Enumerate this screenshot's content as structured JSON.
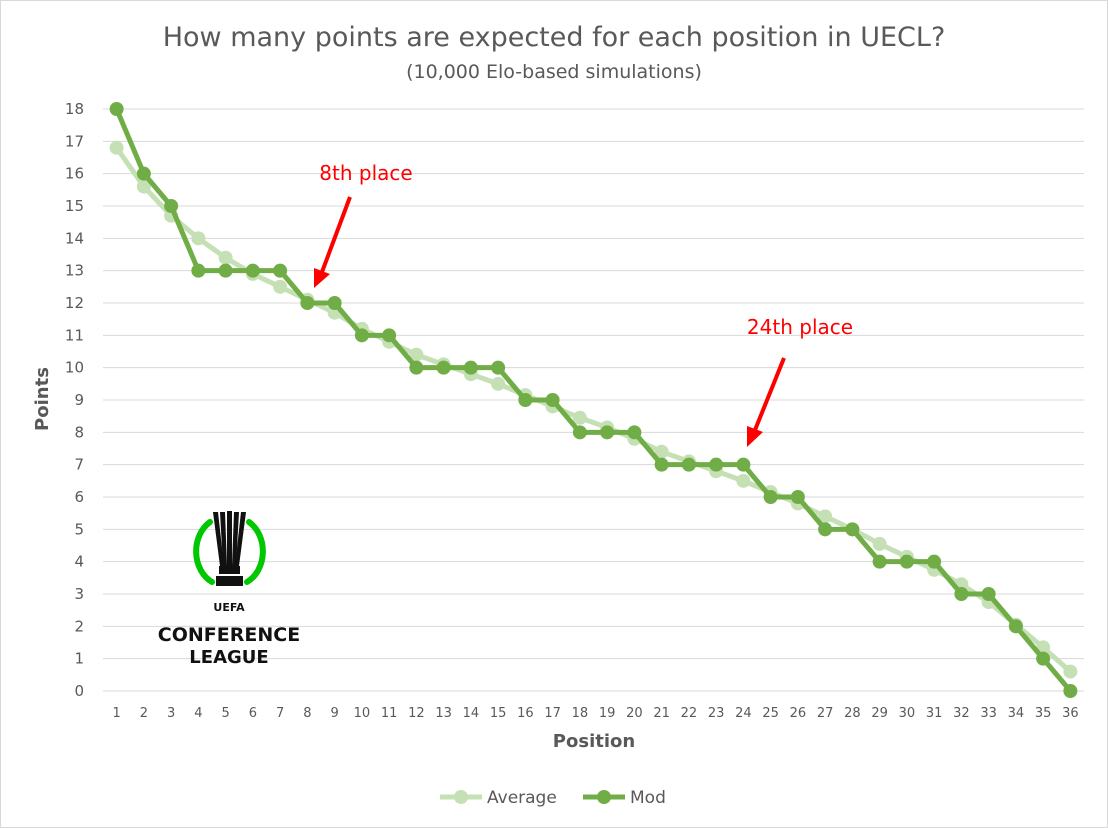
{
  "chart_data": {
    "type": "line",
    "title": "How many points are expected for each position in UECL?",
    "subtitle": "(10,000 Elo-based simulations)",
    "xlabel": "Position",
    "ylabel": "Points",
    "ylim": [
      0,
      18
    ],
    "yticks": [
      "0",
      "1",
      "2",
      "3",
      "4",
      "5",
      "6",
      "7",
      "8",
      "9",
      "10",
      "11",
      "12",
      "13",
      "14",
      "15",
      "16",
      "17",
      "18"
    ],
    "x": [
      1,
      2,
      3,
      4,
      5,
      6,
      7,
      8,
      9,
      10,
      11,
      12,
      13,
      14,
      15,
      16,
      17,
      18,
      19,
      20,
      21,
      22,
      23,
      24,
      25,
      26,
      27,
      28,
      29,
      30,
      31,
      32,
      33,
      34,
      35,
      36
    ],
    "series": [
      {
        "name": "Average",
        "color": "#c5e0b4",
        "values": [
          16.8,
          15.6,
          14.7,
          14.0,
          13.4,
          12.9,
          12.5,
          12.1,
          11.7,
          11.2,
          10.8,
          10.4,
          10.1,
          9.8,
          9.5,
          9.15,
          8.8,
          8.45,
          8.15,
          7.8,
          7.4,
          7.1,
          6.8,
          6.5,
          6.15,
          5.8,
          5.4,
          5.0,
          4.55,
          4.15,
          3.75,
          3.3,
          2.75,
          2.05,
          1.35,
          0.6
        ]
      },
      {
        "name": "Mod",
        "color": "#70ad47",
        "values": [
          18,
          16,
          15,
          13,
          13,
          13,
          13,
          12,
          12,
          11,
          11,
          10,
          10,
          10,
          10,
          9,
          9,
          8,
          8,
          8,
          7,
          7,
          7,
          7,
          6,
          6,
          5,
          5,
          4,
          4,
          4,
          3,
          3,
          2,
          1,
          0
        ]
      }
    ],
    "annotations": [
      {
        "text": "8th place",
        "position": 8,
        "color": "#ff0000"
      },
      {
        "text": "24th place",
        "position": 24,
        "color": "#ff0000"
      }
    ],
    "grid": "horizontal",
    "legend_position": "bottom"
  },
  "logo": {
    "line1": "UEFA",
    "line2": "CONFERENCE",
    "line3": "LEAGUE",
    "ring_color": "#00c800"
  }
}
